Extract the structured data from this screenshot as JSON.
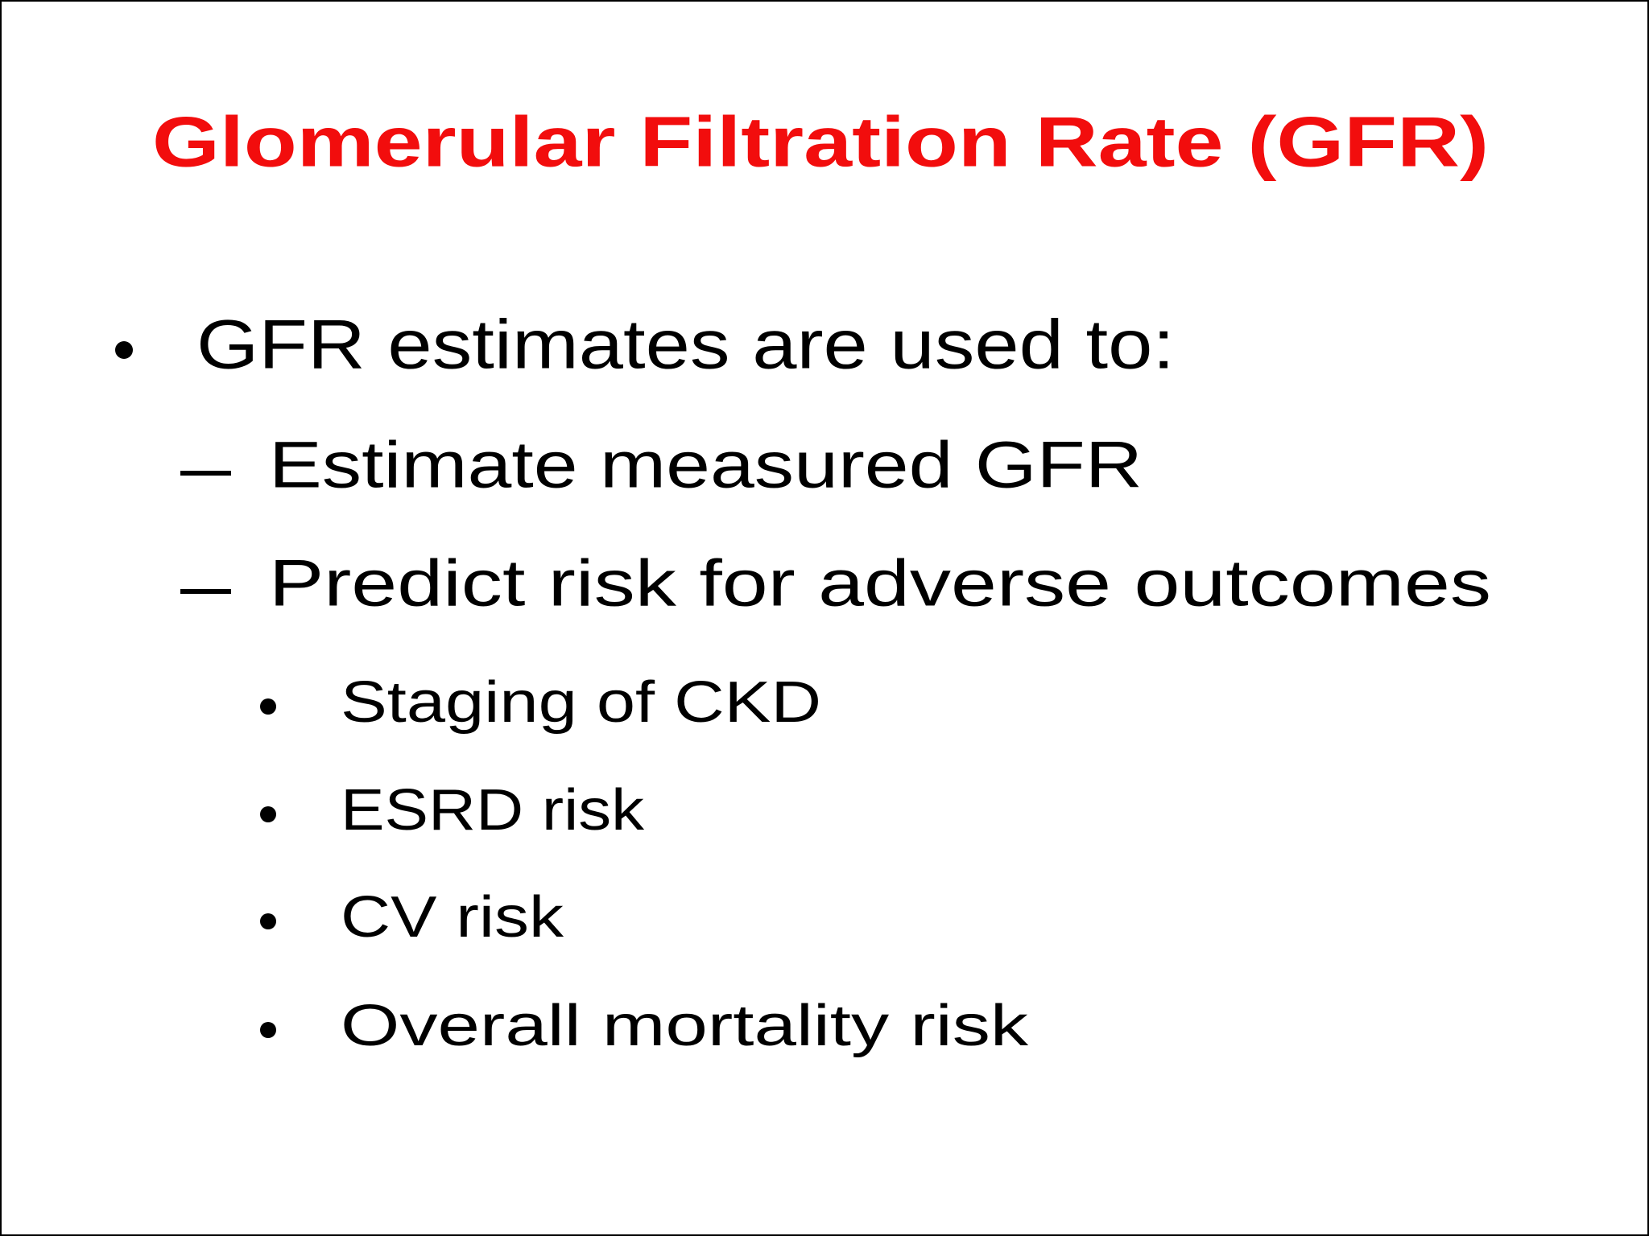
{
  "slide": {
    "title": "Glomerular Filtration Rate (GFR)",
    "bullets": [
      {
        "text": "GFR estimates are used to:",
        "items": [
          {
            "text": "Estimate measured GFR"
          },
          {
            "text": "Predict risk for adverse outcomes",
            "items": [
              "Staging of CKD",
              "ESRD risk",
              "CV risk",
              "Overall mortality risk"
            ]
          }
        ]
      }
    ]
  }
}
